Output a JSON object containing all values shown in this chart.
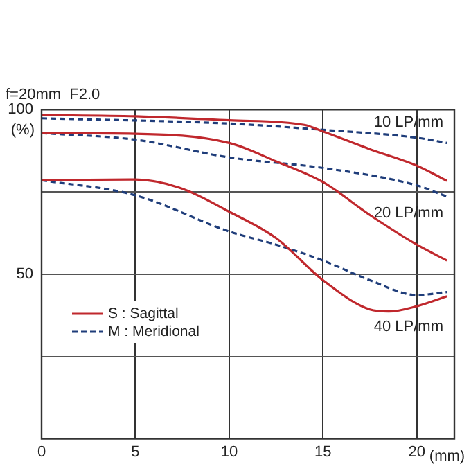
{
  "chart_data": {
    "type": "line",
    "title": "f=20mm  F2.0",
    "xlabel": "(mm)",
    "ylabel": "(%)",
    "x": [
      0,
      5,
      7.5,
      10,
      12.5,
      14,
      15,
      17.5,
      18.5,
      20,
      21.6
    ],
    "series": [
      {
        "name": "S : Sagittal",
        "color": "#c0282d",
        "line_style": "solid",
        "values": [
          98.4,
          98,
          null,
          96.8,
          null,
          95.4,
          93.4,
          88,
          null,
          83,
          78.4
        ]
      },
      {
        "color": "#c0282d",
        "line_style": "solid",
        "values": [
          92.9,
          92.7,
          null,
          89.9,
          84.3,
          null,
          78,
          68,
          null,
          59,
          54.2
        ]
      },
      {
        "color": "#c0282d",
        "line_style": "solid",
        "values": [
          78.6,
          78.8,
          76,
          69,
          61,
          null,
          48.2,
          39.3,
          38.7,
          40.3,
          43.3
        ]
      },
      {
        "name": "M : Meridional",
        "color": "#1f3d7a",
        "line_style": "dashed",
        "values": [
          97.4,
          null,
          null,
          95.8,
          null,
          null,
          93.9,
          null,
          null,
          91.5,
          89.9
        ]
      },
      {
        "color": "#1f3d7a",
        "line_style": "dashed",
        "values": [
          92.9,
          90.9,
          null,
          85.5,
          null,
          null,
          82.3,
          null,
          null,
          77,
          73.6
        ]
      },
      {
        "color": "#1f3d7a",
        "line_style": "dashed",
        "values": [
          78.6,
          74,
          null,
          63,
          59,
          null,
          54.2,
          48.2,
          null,
          43.7,
          44.6
        ]
      }
    ],
    "xlim": [
      0,
      22
    ],
    "xticks": [
      0,
      5,
      10,
      15,
      20
    ],
    "ylim": [
      0,
      100
    ],
    "yticks": [
      {
        "value": 25,
        "label": null
      },
      50,
      {
        "value": 75,
        "label": null
      },
      100
    ],
    "annotations": [
      "10 LP/mm",
      "20 LP/mm",
      "40 LP/mm"
    ],
    "grid": true,
    "legend": "left",
    "marker": "none"
  }
}
